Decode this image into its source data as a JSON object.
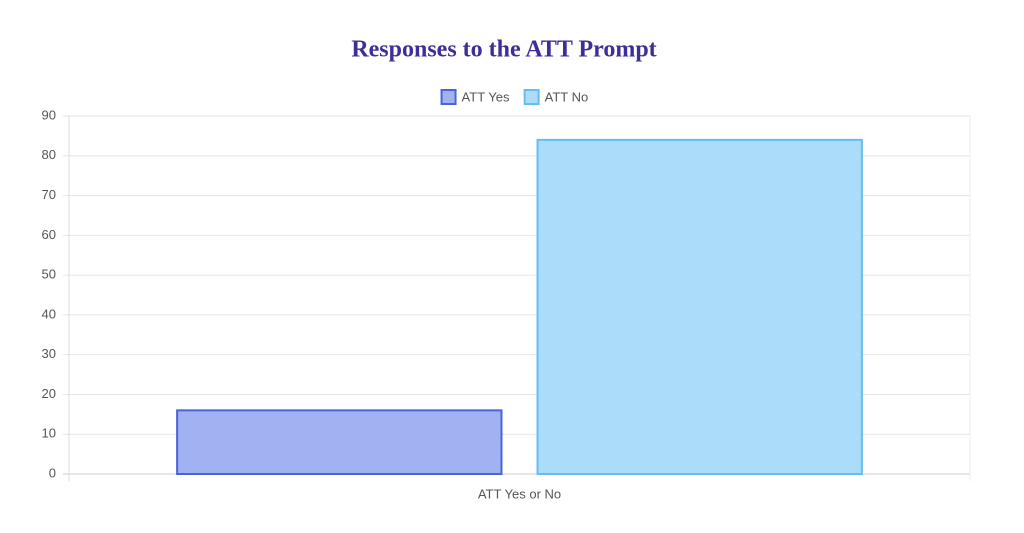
{
  "chart_data": {
    "type": "bar",
    "title": "Responses to the ATT Prompt",
    "categories": [
      "ATT Yes or No"
    ],
    "series": [
      {
        "name": "ATT Yes",
        "color": "#4a64d8",
        "fill": "#a0b2f2",
        "values": [
          16
        ]
      },
      {
        "name": "ATT No",
        "color": "#66bdf0",
        "fill": "#abdcfa",
        "values": [
          84
        ]
      }
    ],
    "ylim": [
      0,
      90
    ],
    "yticks": [
      0,
      10,
      20,
      30,
      40,
      50,
      60,
      70,
      80,
      90
    ],
    "grid": true,
    "legend": "top"
  }
}
